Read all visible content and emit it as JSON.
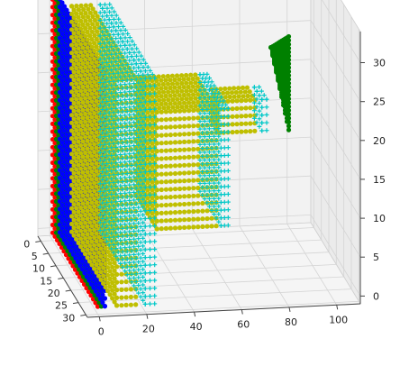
{
  "chart_data": {
    "type": "scatter",
    "projection": "3d",
    "title": "",
    "xlabel": "",
    "ylabel": "",
    "zlabel": "",
    "xlim": [
      -5,
      110
    ],
    "ylim": [
      -2,
      31
    ],
    "zlim": [
      -1,
      34
    ],
    "x_ticks": [
      0,
      20,
      40,
      60,
      80,
      100
    ],
    "y_ticks": [
      0,
      5,
      10,
      15,
      20,
      25,
      30
    ],
    "z_ticks": [
      0,
      5,
      10,
      15,
      20,
      25,
      30
    ],
    "grid": true,
    "legend": "none",
    "series": [
      {
        "color": "#ff0000",
        "marker": "o",
        "blocks": [
          {
            "x": [
              0,
              0
            ],
            "y": [
              0,
              30
            ],
            "z": [
              0,
              30
            ]
          }
        ]
      },
      {
        "color": "#008000",
        "marker": "o",
        "blocks": [
          {
            "x": [
              1.5,
              1.5
            ],
            "y": [
              0,
              30
            ],
            "z": [
              0,
              30
            ]
          },
          {
            "wedge": true,
            "x": [
              85,
              95
            ],
            "y": [
              7,
              11
            ],
            "z": [
              14,
              26
            ]
          }
        ]
      },
      {
        "color": "#0000ff",
        "marker": "o",
        "blocks": [
          {
            "x": [
              3,
              3
            ],
            "y": [
              0,
              30
            ],
            "z": [
              0,
              30
            ]
          }
        ]
      },
      {
        "color": "#bfbf00",
        "marker": "o",
        "blocks": [
          {
            "x": [
              8,
              16
            ],
            "y": [
              0,
              30
            ],
            "z": [
              0,
              29
            ]
          },
          {
            "x": [
              30,
              55
            ],
            "y": [
              8,
              22
            ],
            "z": [
              7,
              22
            ]
          },
          {
            "x": [
              60,
              75
            ],
            "y": [
              11,
              16
            ],
            "z": [
              17,
              21
            ]
          }
        ]
      },
      {
        "color": "#00c8c8",
        "marker": "+",
        "blocks": [
          {
            "x": [
              20,
              24
            ],
            "y": [
              0,
              30
            ],
            "z": [
              0,
              29
            ]
          },
          {
            "x": [
              57,
              60
            ],
            "y": [
              8,
              22
            ],
            "z": [
              7,
              22
            ]
          },
          {
            "x": [
              78,
              80
            ],
            "y": [
              11,
              16
            ],
            "z": [
              17,
              21
            ]
          }
        ]
      }
    ]
  }
}
